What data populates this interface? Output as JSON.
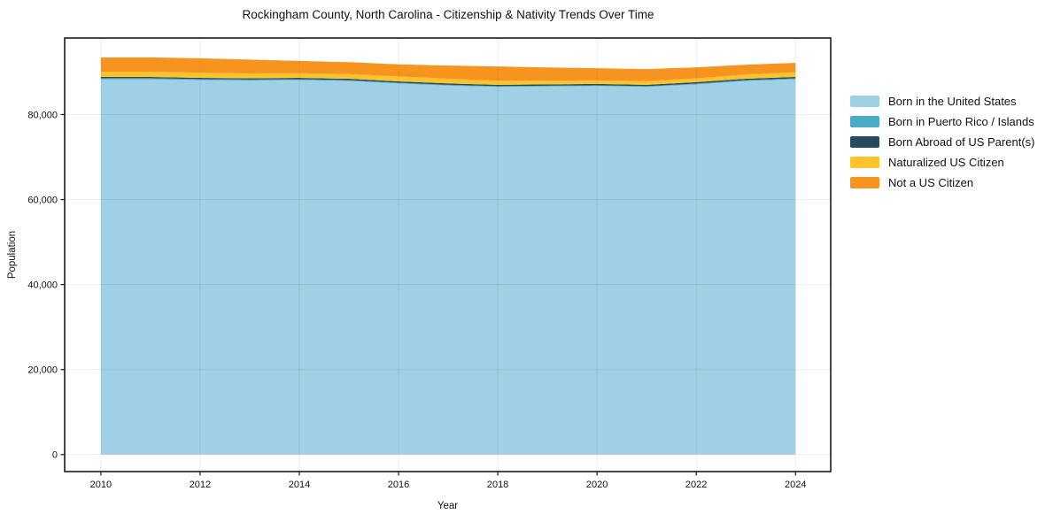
{
  "chart_data": {
    "type": "area",
    "stacked": true,
    "title": "Rockingham County, North Carolina - Citizenship & Nativity Trends Over Time",
    "xlabel": "Year",
    "ylabel": "Population",
    "x": [
      2010,
      2011,
      2012,
      2013,
      2014,
      2015,
      2016,
      2017,
      2018,
      2019,
      2020,
      2021,
      2022,
      2023,
      2024
    ],
    "x_ticks": [
      2010,
      2012,
      2014,
      2016,
      2018,
      2020,
      2022,
      2024
    ],
    "x_tick_labels": [
      "2010",
      "2012",
      "2014",
      "2016",
      "2018",
      "2020",
      "2022",
      "2024"
    ],
    "y_ticks": [
      0,
      20000,
      40000,
      60000,
      80000
    ],
    "y_tick_labels": [
      "0",
      "20,000",
      "40,000",
      "60,000",
      "80,000"
    ],
    "xlim": [
      2009.27,
      2024.71
    ],
    "ylim": [
      -4000,
      98000
    ],
    "grid": true,
    "legend_position": "right",
    "series": [
      {
        "name": "Born in the United States",
        "color": "#9fd0e6",
        "values": [
          88300,
          88300,
          88100,
          88000,
          88100,
          87900,
          87300,
          86800,
          86500,
          86600,
          86700,
          86500,
          87100,
          87900,
          88300
        ]
      },
      {
        "name": "Born in Puerto Rico / Islands",
        "color": "#4aabc7",
        "values": [
          250,
          250,
          240,
          230,
          220,
          210,
          200,
          200,
          190,
          190,
          180,
          180,
          190,
          200,
          210
        ]
      },
      {
        "name": "Born Abroad of US Parent(s)",
        "color": "#274b5e",
        "values": [
          300,
          300,
          300,
          300,
          300,
          310,
          310,
          320,
          310,
          300,
          310,
          320,
          320,
          330,
          340
        ]
      },
      {
        "name": "Naturalized US Citizen",
        "color": "#fcc32d",
        "values": [
          1250,
          1250,
          1200,
          1150,
          1100,
          1100,
          1150,
          1100,
          950,
          900,
          850,
          850,
          900,
          1000,
          1100
        ]
      },
      {
        "name": "Not a US Citizen",
        "color": "#f79420",
        "values": [
          3350,
          3350,
          3400,
          3250,
          2900,
          2800,
          2850,
          3100,
          3350,
          3100,
          2850,
          2850,
          2600,
          2300,
          2200
        ]
      }
    ]
  }
}
